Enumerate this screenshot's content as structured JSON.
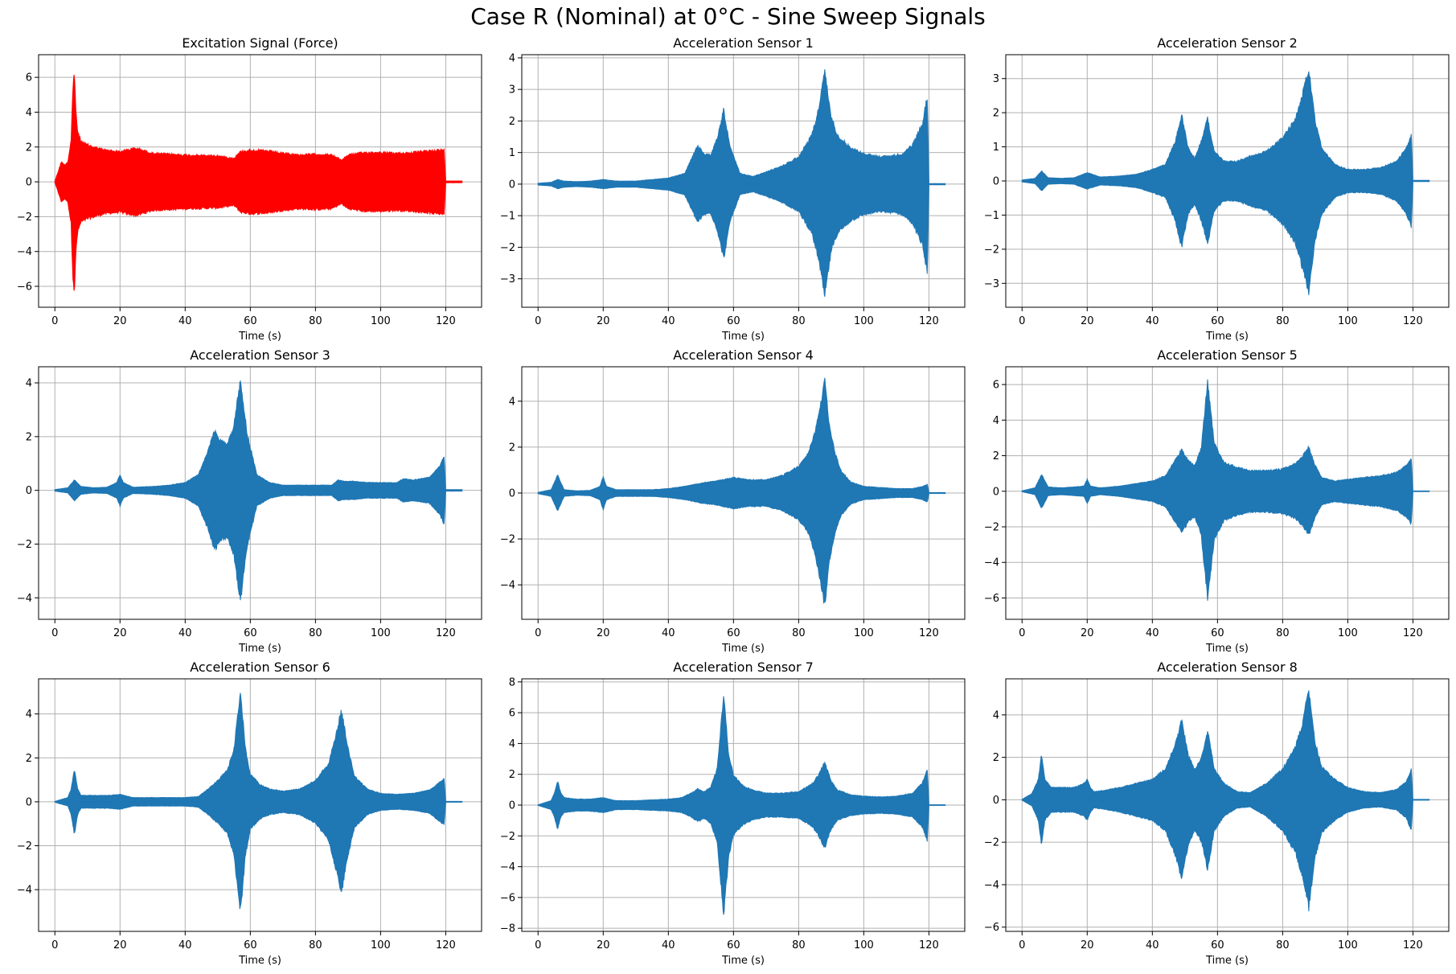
{
  "figure": {
    "title": "Case R (Nominal) at 0°C - Sine Sweep Signals"
  },
  "colors": {
    "force": "#ff0000",
    "sensor": "#1f77b4",
    "grid": "#b0b0b0"
  },
  "chart_data": [
    {
      "type": "area",
      "title": "Excitation Signal (Force)",
      "xlabel": "Time (s)",
      "ylabel": "",
      "xlim": [
        -5,
        131
      ],
      "ylim": [
        -7.2,
        7.3
      ],
      "xticks": [
        0,
        20,
        40,
        60,
        80,
        100,
        120
      ],
      "yticks": [
        -6,
        -4,
        -2,
        0,
        2,
        4,
        6
      ],
      "grid": true,
      "color": "#ff0000",
      "envelope": {
        "x": [
          0,
          1,
          2,
          3,
          4,
          5,
          5.5,
          6,
          6.5,
          7,
          8,
          10,
          15,
          20,
          22,
          25,
          30,
          40,
          50,
          55,
          57,
          60,
          65,
          70,
          75,
          80,
          85,
          88,
          90,
          95,
          100,
          105,
          110,
          115,
          118,
          119.5,
          120,
          125
        ],
        "y": [
          0.05,
          0.6,
          1.2,
          1.0,
          1.2,
          2.5,
          5.5,
          6.6,
          4.0,
          3.0,
          2.4,
          2.2,
          1.9,
          1.8,
          1.9,
          2.0,
          1.7,
          1.6,
          1.55,
          1.4,
          1.8,
          1.9,
          1.85,
          1.7,
          1.6,
          1.65,
          1.6,
          1.3,
          1.6,
          1.75,
          1.75,
          1.7,
          1.75,
          1.85,
          1.9,
          1.9,
          0.05,
          0.05
        ]
      }
    },
    {
      "type": "area",
      "title": "Acceleration Sensor 1",
      "xlabel": "Time (s)",
      "ylabel": "",
      "xlim": [
        -5,
        131
      ],
      "ylim": [
        -3.9,
        4.1
      ],
      "xticks": [
        0,
        20,
        40,
        60,
        80,
        100,
        120
      ],
      "yticks": [
        -3,
        -2,
        -1,
        0,
        1,
        2,
        3,
        4
      ],
      "grid": true,
      "color": "#1f77b4",
      "envelope": {
        "x": [
          0,
          4,
          6,
          8,
          12,
          16,
          20,
          24,
          30,
          35,
          40,
          45,
          47,
          49,
          51,
          53,
          55,
          57,
          59,
          62,
          66,
          70,
          75,
          80,
          84,
          86,
          88,
          90,
          92,
          96,
          100,
          105,
          110,
          112,
          115,
          118,
          119.5,
          120,
          125
        ],
        "y": [
          0.03,
          0.06,
          0.15,
          0.1,
          0.08,
          0.1,
          0.15,
          0.1,
          0.1,
          0.15,
          0.2,
          0.35,
          0.8,
          1.25,
          1.0,
          0.95,
          1.5,
          2.45,
          1.2,
          0.35,
          0.25,
          0.4,
          0.6,
          0.9,
          1.6,
          2.4,
          3.7,
          2.2,
          1.6,
          1.2,
          1.0,
          0.9,
          0.95,
          1.0,
          1.3,
          2.0,
          2.9,
          0.02,
          0.02
        ]
      }
    },
    {
      "type": "area",
      "title": "Acceleration Sensor 2",
      "xlabel": "Time (s)",
      "ylabel": "",
      "xlim": [
        -5,
        131
      ],
      "ylim": [
        -3.7,
        3.7
      ],
      "xticks": [
        0,
        20,
        40,
        60,
        80,
        100,
        120
      ],
      "yticks": [
        -3,
        -2,
        -1,
        0,
        1,
        2,
        3
      ],
      "grid": true,
      "color": "#1f77b4",
      "envelope": {
        "x": [
          0,
          4,
          6,
          8,
          12,
          16,
          20,
          24,
          30,
          35,
          40,
          44,
          47,
          49,
          51,
          53,
          55,
          57,
          59,
          62,
          66,
          70,
          75,
          80,
          84,
          86,
          88,
          90,
          92,
          96,
          100,
          105,
          110,
          115,
          118,
          119.5,
          120,
          125
        ],
        "y": [
          0.03,
          0.08,
          0.3,
          0.1,
          0.08,
          0.1,
          0.25,
          0.12,
          0.15,
          0.2,
          0.35,
          0.5,
          1.2,
          2.0,
          1.0,
          0.7,
          1.2,
          1.9,
          0.9,
          0.6,
          0.6,
          0.75,
          0.9,
          1.3,
          1.9,
          2.6,
          3.4,
          1.8,
          1.0,
          0.5,
          0.35,
          0.35,
          0.4,
          0.6,
          1.0,
          1.4,
          0.02,
          0.02
        ]
      }
    },
    {
      "type": "area",
      "title": "Acceleration Sensor 3",
      "xlabel": "Time (s)",
      "ylabel": "",
      "xlim": [
        -5,
        131
      ],
      "ylim": [
        -4.8,
        4.6
      ],
      "xticks": [
        0,
        20,
        40,
        60,
        80,
        100,
        120
      ],
      "yticks": [
        -4,
        -2,
        0,
        2,
        4
      ],
      "grid": true,
      "color": "#1f77b4",
      "envelope": {
        "x": [
          0,
          4,
          6,
          8,
          12,
          16,
          19,
          20,
          21,
          24,
          30,
          35,
          40,
          44,
          47,
          49,
          51,
          53,
          55,
          56,
          57,
          59,
          62,
          66,
          70,
          75,
          80,
          85,
          87,
          89,
          92,
          96,
          100,
          105,
          107,
          110,
          115,
          118,
          119.5,
          120,
          125
        ],
        "y": [
          0.03,
          0.1,
          0.4,
          0.15,
          0.1,
          0.12,
          0.3,
          0.6,
          0.3,
          0.12,
          0.15,
          0.2,
          0.3,
          0.6,
          1.5,
          2.3,
          1.9,
          1.8,
          2.5,
          3.5,
          4.25,
          2.2,
          0.6,
          0.3,
          0.2,
          0.2,
          0.2,
          0.2,
          0.4,
          0.35,
          0.35,
          0.3,
          0.3,
          0.3,
          0.45,
          0.4,
          0.5,
          0.9,
          1.3,
          0.03,
          0.03
        ]
      }
    },
    {
      "type": "area",
      "title": "Acceleration Sensor 4",
      "xlabel": "Time (s)",
      "ylabel": "",
      "xlim": [
        -5,
        131
      ],
      "ylim": [
        -5.5,
        5.5
      ],
      "xticks": [
        0,
        20,
        40,
        60,
        80,
        100,
        120
      ],
      "yticks": [
        -4,
        -2,
        0,
        2,
        4
      ],
      "grid": true,
      "color": "#1f77b4",
      "envelope": {
        "x": [
          0,
          4,
          6,
          8,
          12,
          16,
          19,
          20,
          21,
          24,
          30,
          35,
          40,
          45,
          50,
          55,
          60,
          65,
          70,
          75,
          80,
          83,
          85,
          86.5,
          88,
          89.5,
          91,
          93,
          96,
          100,
          105,
          110,
          115,
          118,
          119.5,
          120,
          125
        ],
        "y": [
          0.03,
          0.15,
          0.8,
          0.15,
          0.1,
          0.12,
          0.3,
          0.75,
          0.3,
          0.15,
          0.15,
          0.15,
          0.2,
          0.3,
          0.45,
          0.55,
          0.7,
          0.6,
          0.6,
          0.8,
          1.2,
          1.8,
          2.7,
          3.8,
          5.1,
          3.0,
          1.9,
          1.0,
          0.5,
          0.3,
          0.25,
          0.2,
          0.2,
          0.3,
          0.4,
          0.02,
          0.02
        ]
      }
    },
    {
      "type": "area",
      "title": "Acceleration Sensor 5",
      "xlabel": "Time (s)",
      "ylabel": "",
      "xlim": [
        -5,
        131
      ],
      "ylim": [
        -7.2,
        7.0
      ],
      "xticks": [
        0,
        20,
        40,
        60,
        80,
        100,
        120
      ],
      "yticks": [
        -6,
        -4,
        -2,
        0,
        2,
        4,
        6
      ],
      "grid": true,
      "color": "#1f77b4",
      "envelope": {
        "x": [
          0,
          4,
          6,
          8,
          12,
          16,
          19,
          20,
          21,
          24,
          30,
          35,
          40,
          44,
          47,
          49,
          51,
          53,
          55,
          56,
          57,
          59,
          62,
          66,
          70,
          75,
          80,
          84,
          86,
          88,
          90,
          92,
          96,
          100,
          105,
          110,
          115,
          118,
          119.5,
          120,
          125
        ],
        "y": [
          0.03,
          0.2,
          1.0,
          0.25,
          0.2,
          0.25,
          0.3,
          0.7,
          0.3,
          0.2,
          0.3,
          0.45,
          0.6,
          0.9,
          1.8,
          2.4,
          1.8,
          1.5,
          2.5,
          4.5,
          6.4,
          2.8,
          1.7,
          1.4,
          1.2,
          1.2,
          1.3,
          1.6,
          2.0,
          2.6,
          1.5,
          0.8,
          0.6,
          0.7,
          0.8,
          0.9,
          1.1,
          1.5,
          1.9,
          0.02,
          0.02
        ]
      }
    },
    {
      "type": "area",
      "title": "Acceleration Sensor 6",
      "xlabel": "Time (s)",
      "ylabel": "",
      "xlim": [
        -5,
        131
      ],
      "ylim": [
        -5.9,
        5.6
      ],
      "xticks": [
        0,
        20,
        40,
        60,
        80,
        100,
        120
      ],
      "yticks": [
        -4,
        -2,
        0,
        2,
        4
      ],
      "grid": true,
      "color": "#1f77b4",
      "envelope": {
        "x": [
          0,
          4,
          5,
          6,
          7,
          8,
          12,
          16,
          20,
          24,
          30,
          35,
          40,
          44,
          47,
          50,
          53,
          55,
          56,
          57,
          58.5,
          60,
          63,
          66,
          70,
          75,
          80,
          84,
          86,
          88,
          90,
          92,
          96,
          100,
          105,
          110,
          115,
          118,
          119.5,
          120,
          125
        ],
        "y": [
          0.02,
          0.2,
          0.6,
          1.55,
          0.6,
          0.3,
          0.3,
          0.3,
          0.35,
          0.2,
          0.2,
          0.2,
          0.2,
          0.25,
          0.6,
          1.0,
          1.5,
          2.5,
          4.0,
          5.2,
          2.5,
          1.3,
          0.8,
          0.6,
          0.5,
          0.6,
          1.0,
          1.8,
          3.0,
          4.3,
          2.5,
          1.2,
          0.6,
          0.4,
          0.35,
          0.4,
          0.55,
          0.9,
          1.1,
          0.02,
          0.02
        ]
      }
    },
    {
      "type": "area",
      "title": "Acceleration Sensor 7",
      "xlabel": "Time (s)",
      "ylabel": "",
      "xlim": [
        -5,
        131
      ],
      "ylim": [
        -8.2,
        8.2
      ],
      "xticks": [
        0,
        20,
        40,
        60,
        80,
        100,
        120
      ],
      "yticks": [
        -8,
        -6,
        -4,
        -2,
        0,
        2,
        4,
        6,
        8
      ],
      "grid": true,
      "color": "#1f77b4",
      "envelope": {
        "x": [
          0,
          4,
          5,
          6,
          7,
          8,
          12,
          16,
          20,
          24,
          30,
          35,
          40,
          44,
          47,
          49,
          51,
          53,
          55,
          56,
          57,
          58.5,
          60,
          63,
          66,
          70,
          75,
          80,
          84,
          86,
          88,
          90,
          92,
          96,
          100,
          105,
          110,
          115,
          118,
          119.5,
          120,
          125
        ],
        "y": [
          0.02,
          0.3,
          0.8,
          1.6,
          0.8,
          0.5,
          0.4,
          0.4,
          0.5,
          0.3,
          0.3,
          0.35,
          0.4,
          0.5,
          0.8,
          1.1,
          0.9,
          1.2,
          2.5,
          5.0,
          7.4,
          3.5,
          2.0,
          1.3,
          1.0,
          0.8,
          0.8,
          0.9,
          1.4,
          2.0,
          2.9,
          1.6,
          1.0,
          0.7,
          0.6,
          0.55,
          0.6,
          0.8,
          1.5,
          2.4,
          0.02,
          0.02
        ]
      }
    },
    {
      "type": "area",
      "title": "Acceleration Sensor 8",
      "xlabel": "Time (s)",
      "ylabel": "",
      "xlim": [
        -5,
        131
      ],
      "ylim": [
        -6.2,
        5.7
      ],
      "xticks": [
        0,
        20,
        40,
        60,
        80,
        100,
        120
      ],
      "yticks": [
        -6,
        -4,
        -2,
        0,
        2,
        4
      ],
      "grid": true,
      "color": "#1f77b4",
      "envelope": {
        "x": [
          0,
          3,
          5,
          6,
          7,
          9,
          12,
          16,
          19,
          20,
          21,
          22,
          25,
          30,
          35,
          40,
          44,
          47,
          49,
          51,
          53,
          55,
          57,
          59,
          62,
          66,
          70,
          75,
          80,
          84,
          86,
          88,
          90,
          92,
          96,
          100,
          105,
          110,
          115,
          118,
          119.5,
          120,
          125
        ],
        "y": [
          0.02,
          0.3,
          1.0,
          2.2,
          1.0,
          0.6,
          0.6,
          0.6,
          0.8,
          1.0,
          0.6,
          0.4,
          0.45,
          0.6,
          0.8,
          1.0,
          1.5,
          2.7,
          3.9,
          2.2,
          1.5,
          2.0,
          3.4,
          1.5,
          0.8,
          0.4,
          0.35,
          0.8,
          1.5,
          2.6,
          3.7,
          5.3,
          2.8,
          1.6,
          1.0,
          0.6,
          0.4,
          0.35,
          0.5,
          0.9,
          1.5,
          0.02,
          0.02
        ]
      }
    }
  ]
}
